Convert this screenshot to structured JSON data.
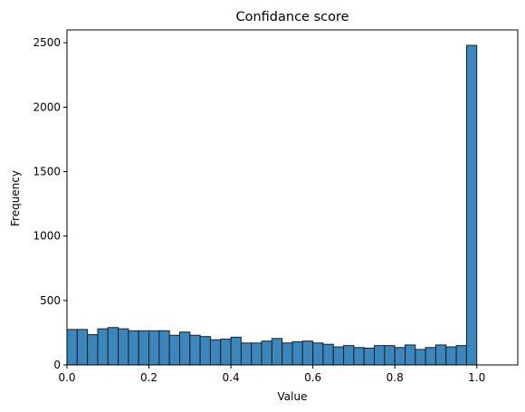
{
  "chart_data": {
    "type": "bar",
    "subtype": "histogram",
    "title": "Confidance score",
    "xlabel": "Value",
    "ylabel": "Frequency",
    "xlim": [
      0,
      1.1
    ],
    "ylim": [
      0,
      2600
    ],
    "xticks": [
      "0.0",
      "0.2",
      "0.4",
      "0.6",
      "0.8",
      "1.0"
    ],
    "yticks": [
      "0",
      "500",
      "1000",
      "1500",
      "2000",
      "2500"
    ],
    "grid": false,
    "bar_color": "#3b86bd",
    "edge_color": "#1f1f1f",
    "bin_width": 0.025,
    "bins": [
      {
        "x": 0.0,
        "count": 275
      },
      {
        "x": 0.025,
        "count": 275
      },
      {
        "x": 0.05,
        "count": 235
      },
      {
        "x": 0.075,
        "count": 280
      },
      {
        "x": 0.1,
        "count": 290
      },
      {
        "x": 0.125,
        "count": 280
      },
      {
        "x": 0.15,
        "count": 265
      },
      {
        "x": 0.175,
        "count": 265
      },
      {
        "x": 0.2,
        "count": 265
      },
      {
        "x": 0.225,
        "count": 265
      },
      {
        "x": 0.25,
        "count": 230
      },
      {
        "x": 0.275,
        "count": 255
      },
      {
        "x": 0.3,
        "count": 230
      },
      {
        "x": 0.325,
        "count": 220
      },
      {
        "x": 0.35,
        "count": 195
      },
      {
        "x": 0.375,
        "count": 200
      },
      {
        "x": 0.4,
        "count": 215
      },
      {
        "x": 0.425,
        "count": 170
      },
      {
        "x": 0.45,
        "count": 170
      },
      {
        "x": 0.475,
        "count": 185
      },
      {
        "x": 0.5,
        "count": 205
      },
      {
        "x": 0.525,
        "count": 170
      },
      {
        "x": 0.55,
        "count": 180
      },
      {
        "x": 0.575,
        "count": 185
      },
      {
        "x": 0.6,
        "count": 170
      },
      {
        "x": 0.625,
        "count": 160
      },
      {
        "x": 0.65,
        "count": 140
      },
      {
        "x": 0.675,
        "count": 150
      },
      {
        "x": 0.7,
        "count": 135
      },
      {
        "x": 0.725,
        "count": 130
      },
      {
        "x": 0.75,
        "count": 150
      },
      {
        "x": 0.775,
        "count": 150
      },
      {
        "x": 0.8,
        "count": 135
      },
      {
        "x": 0.825,
        "count": 155
      },
      {
        "x": 0.85,
        "count": 120
      },
      {
        "x": 0.875,
        "count": 135
      },
      {
        "x": 0.9,
        "count": 155
      },
      {
        "x": 0.925,
        "count": 140
      },
      {
        "x": 0.95,
        "count": 150
      },
      {
        "x": 0.975,
        "count": 2480
      }
    ]
  }
}
